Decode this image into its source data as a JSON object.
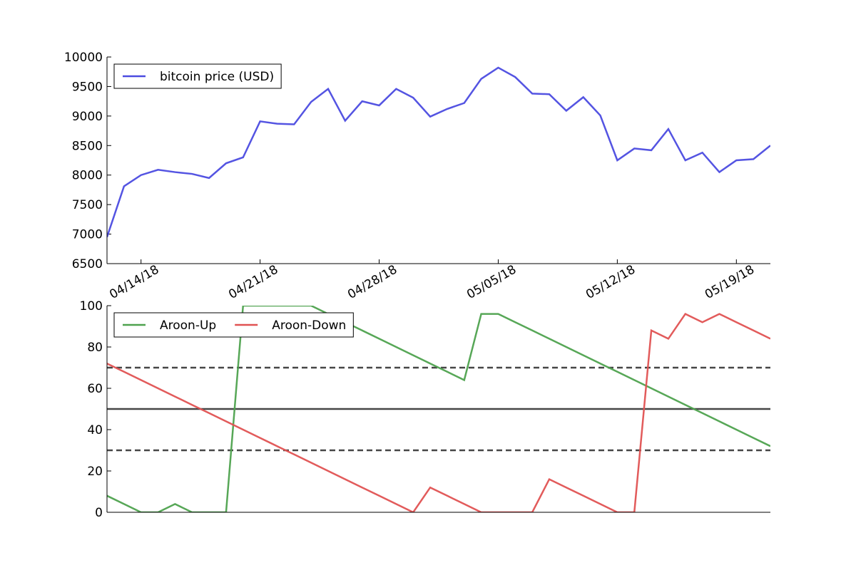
{
  "chart_data": [
    {
      "type": "line",
      "x": [
        "04/12/18",
        "04/13/18",
        "04/14/18",
        "04/15/18",
        "04/16/18",
        "04/17/18",
        "04/18/18",
        "04/19/18",
        "04/20/18",
        "04/21/18",
        "04/22/18",
        "04/23/18",
        "04/24/18",
        "04/25/18",
        "04/26/18",
        "04/27/18",
        "04/28/18",
        "04/29/18",
        "04/30/18",
        "05/01/18",
        "05/02/18",
        "05/03/18",
        "05/04/18",
        "05/05/18",
        "05/06/18",
        "05/07/18",
        "05/08/18",
        "05/09/18",
        "05/10/18",
        "05/11/18",
        "05/12/18",
        "05/13/18",
        "05/14/18",
        "05/15/18",
        "05/16/18",
        "05/17/18",
        "05/18/18",
        "05/19/18",
        "05/20/18",
        "05/21/18"
      ],
      "series": [
        {
          "name": "bitcoin price (USD)",
          "color": "#4b4be0",
          "values": [
            6950,
            7810,
            8000,
            8090,
            8050,
            8020,
            7950,
            8200,
            8300,
            8910,
            8870,
            8860,
            9240,
            9460,
            8920,
            9250,
            9180,
            9460,
            9310,
            8990,
            9120,
            9220,
            9630,
            9820,
            9660,
            9380,
            9370,
            9090,
            9320,
            9010,
            8250,
            8450,
            8420,
            8780,
            8250,
            8380,
            8050,
            8250,
            8270,
            8500
          ]
        }
      ],
      "xlim": [
        "04/12/18",
        "05/21/18"
      ],
      "xticks": [
        "04/14/18",
        "04/21/18",
        "04/28/18",
        "05/05/18",
        "05/12/18",
        "05/19/18"
      ],
      "ylim": [
        6500,
        10000
      ],
      "yticks": [
        6500,
        7000,
        7500,
        8000,
        8500,
        9000,
        9500,
        10000
      ],
      "legend": "upper left"
    },
    {
      "type": "line",
      "x": [
        "04/12/18",
        "04/13/18",
        "04/14/18",
        "04/15/18",
        "04/16/18",
        "04/17/18",
        "04/18/18",
        "04/19/18",
        "04/20/18",
        "04/21/18",
        "04/22/18",
        "04/23/18",
        "04/24/18",
        "04/25/18",
        "04/26/18",
        "04/27/18",
        "04/28/18",
        "04/29/18",
        "04/30/18",
        "05/01/18",
        "05/02/18",
        "05/03/18",
        "05/04/18",
        "05/05/18",
        "05/06/18",
        "05/07/18",
        "05/08/18",
        "05/09/18",
        "05/10/18",
        "05/11/18",
        "05/12/18",
        "05/13/18",
        "05/14/18",
        "05/15/18",
        "05/16/18",
        "05/17/18",
        "05/18/18",
        "05/19/18",
        "05/20/18",
        "05/21/18"
      ],
      "series": [
        {
          "name": "Aroon-Up",
          "color": "#4ea24e",
          "values": [
            8,
            4,
            0,
            0,
            4,
            0,
            0,
            0,
            100,
            100,
            100,
            100,
            100,
            96,
            92,
            88,
            84,
            80,
            76,
            72,
            68,
            64,
            96,
            96,
            92,
            88,
            84,
            80,
            76,
            72,
            68,
            64,
            60,
            56,
            52,
            48,
            44,
            40,
            36,
            32
          ]
        },
        {
          "name": "Aroon-Down",
          "color": "#e05252",
          "values": [
            72,
            68,
            64,
            60,
            56,
            52,
            48,
            44,
            40,
            36,
            32,
            28,
            24,
            20,
            16,
            12,
            8,
            4,
            0,
            12,
            8,
            4,
            0,
            0,
            0,
            0,
            16,
            12,
            8,
            4,
            0,
            0,
            88,
            84,
            96,
            92,
            96,
            92,
            88,
            84
          ]
        }
      ],
      "hlines": [
        {
          "value": 70,
          "style": "dashed"
        },
        {
          "value": 50,
          "style": "solid"
        },
        {
          "value": 30,
          "style": "dashed"
        }
      ],
      "xlim": [
        "04/12/18",
        "05/21/18"
      ],
      "ylim": [
        0,
        100
      ],
      "yticks": [
        0,
        20,
        40,
        60,
        80,
        100
      ],
      "legend": "upper left"
    }
  ]
}
